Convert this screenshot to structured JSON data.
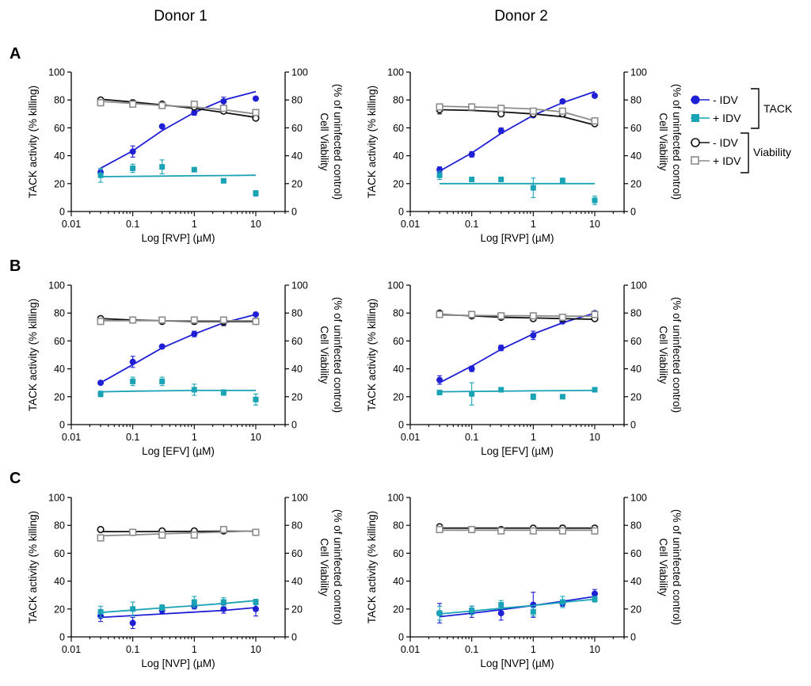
{
  "colors": {
    "tack_minus": "#1f1fd6",
    "tack_plus": "#1aa3b5",
    "viab_minus": "#111111",
    "viab_plus": "#8c8c8c",
    "axis": "#000000"
  },
  "donors": [
    "Donor 1",
    "Donor 2"
  ],
  "panels": [
    "A",
    "B",
    "C"
  ],
  "legend": {
    "items": [
      "- IDV",
      "+ IDV",
      "- IDV",
      "+ IDV"
    ],
    "groups": [
      "TACK",
      "Viability"
    ]
  },
  "chart_data": [
    {
      "type": "scatter",
      "panel": "A",
      "donor": "Donor 1",
      "xlabel": "Log [RVP] (µM)",
      "ylabel_left": "TACK activity (% killing)",
      "ylabel_right_1": "Cell Viability",
      "ylabel_right_2": "(% of uninfected control)",
      "xscale": "log",
      "xlim": [
        0.01,
        30
      ],
      "ylim": [
        0,
        100
      ],
      "x_ticks": [
        "0.01",
        "0.1",
        "1",
        "10"
      ],
      "y_ticks": [
        "0",
        "20",
        "40",
        "60",
        "80",
        "100"
      ],
      "x": [
        0.03,
        0.1,
        0.3,
        1,
        3,
        10
      ],
      "series": [
        {
          "name": "TACK - IDV",
          "values": [
            28,
            43,
            61,
            71,
            79,
            81
          ],
          "err": [
            2,
            4,
            1,
            2,
            3,
            1
          ],
          "fit": [
            31,
            43.5,
            58,
            71,
            80,
            86
          ]
        },
        {
          "name": "TACK + IDV",
          "values": [
            26,
            31,
            32,
            30,
            22,
            13
          ],
          "err": [
            5,
            3,
            5,
            1,
            1,
            2
          ],
          "fit": [
            25,
            25.2,
            25.4,
            25.6,
            25.8,
            26
          ]
        },
        {
          "name": "Viability - IDV",
          "values": [
            80,
            78,
            77,
            75,
            72,
            67
          ],
          "err": [
            1,
            2,
            1,
            1,
            1,
            1
          ],
          "fit": [
            80.5,
            78.5,
            76.5,
            74,
            71,
            67.5
          ]
        },
        {
          "name": "Viability + IDV",
          "values": [
            78,
            77,
            76,
            77,
            74,
            71
          ],
          "err": [
            1,
            1,
            1,
            2,
            2,
            1
          ],
          "fit": [
            79,
            77.5,
            76,
            75,
            73,
            70
          ]
        }
      ]
    },
    {
      "type": "scatter",
      "panel": "A",
      "donor": "Donor 2",
      "xlabel": "Log [RVP] (µM)",
      "ylabel_left": "TACK activity (% killing)",
      "ylabel_right_1": "Cell Viability",
      "ylabel_right_2": "(% of uninfected control)",
      "xscale": "log",
      "xlim": [
        0.01,
        30
      ],
      "ylim": [
        0,
        100
      ],
      "x_ticks": [
        "0.01",
        "0.1",
        "1",
        "10"
      ],
      "y_ticks": [
        "0",
        "20",
        "40",
        "60",
        "80",
        "100"
      ],
      "x": [
        0.03,
        0.1,
        0.3,
        1,
        3,
        10
      ],
      "series": [
        {
          "name": "TACK - IDV",
          "values": [
            30,
            41,
            58,
            69,
            79,
            83
          ],
          "err": [
            2,
            2,
            2,
            1,
            1,
            1
          ],
          "fit": [
            29,
            42,
            56,
            69,
            78,
            86
          ]
        },
        {
          "name": "TACK + IDV",
          "values": [
            26,
            23,
            23,
            17,
            22,
            8
          ],
          "err": [
            3,
            1,
            1,
            7,
            2,
            3
          ],
          "fit": [
            20,
            20,
            20,
            20,
            20,
            20
          ]
        },
        {
          "name": "Viability - IDV",
          "values": [
            73,
            75,
            70,
            70,
            70,
            63
          ],
          "err": [
            3,
            2,
            1,
            1,
            1,
            1
          ],
          "fit": [
            73,
            72.5,
            71.5,
            70,
            68,
            62
          ]
        },
        {
          "name": "Viability + IDV",
          "values": [
            75,
            75,
            74,
            72,
            72,
            65
          ],
          "err": [
            2,
            1,
            1,
            2,
            2,
            1
          ],
          "fit": [
            75.5,
            75,
            74.5,
            73.5,
            71.5,
            65
          ]
        }
      ]
    },
    {
      "type": "scatter",
      "panel": "B",
      "donor": "Donor 1",
      "xlabel": "Log [EFV] (µM)",
      "ylabel_left": "TACK activity (% killing)",
      "ylabel_right_1": "Cell Viability",
      "ylabel_right_2": "(% of uninfected control)",
      "xscale": "log",
      "xlim": [
        0.01,
        30
      ],
      "ylim": [
        0,
        100
      ],
      "x_ticks": [
        "0.01",
        "0.1",
        "1",
        "10"
      ],
      "y_ticks": [
        "0",
        "20",
        "40",
        "60",
        "80",
        "100"
      ],
      "x": [
        0.03,
        0.1,
        0.3,
        1,
        3,
        10
      ],
      "series": [
        {
          "name": "TACK - IDV",
          "values": [
            30,
            45,
            56,
            65,
            73,
            79
          ],
          "err": [
            1,
            4,
            1,
            2,
            2,
            1
          ],
          "fit": [
            30,
            43,
            55,
            65,
            73,
            79
          ]
        },
        {
          "name": "TACK + IDV",
          "values": [
            22,
            31,
            31,
            25,
            23,
            18
          ],
          "err": [
            2,
            3,
            3,
            4,
            2,
            4
          ],
          "fit": [
            23.5,
            24,
            24.2,
            24.5,
            24.5,
            24.5
          ]
        },
        {
          "name": "Viability - IDV",
          "values": [
            76,
            75,
            74,
            74,
            74,
            74
          ],
          "err": [
            1,
            1,
            1,
            2,
            3,
            1
          ],
          "fit": [
            76,
            75,
            74.5,
            74,
            74,
            74
          ]
        },
        {
          "name": "Viability + IDV",
          "values": [
            74,
            75,
            75,
            75,
            75,
            74
          ],
          "err": [
            1,
            1,
            1,
            1,
            1,
            1
          ],
          "fit": [
            74.5,
            74.5,
            74.5,
            74.5,
            74.5,
            74.5
          ]
        }
      ]
    },
    {
      "type": "scatter",
      "panel": "B",
      "donor": "Donor 2",
      "xlabel": "Log [EFV] (µM)",
      "ylabel_left": "TACK activity (% killing)",
      "ylabel_right_1": "Cell Viability",
      "ylabel_right_2": "(% of uninfected control)",
      "xscale": "log",
      "xlim": [
        0.01,
        30
      ],
      "ylim": [
        0,
        100
      ],
      "x_ticks": [
        "0.01",
        "0.1",
        "1",
        "10"
      ],
      "y_ticks": [
        "0",
        "20",
        "40",
        "60",
        "80",
        "100"
      ],
      "x": [
        0.03,
        0.1,
        0.3,
        1,
        3,
        10
      ],
      "series": [
        {
          "name": "TACK - IDV",
          "values": [
            32,
            40,
            55,
            64,
            74,
            80
          ],
          "err": [
            3,
            2,
            2,
            3,
            1,
            1
          ],
          "fit": [
            30,
            42,
            54,
            65,
            73,
            80
          ]
        },
        {
          "name": "TACK + IDV",
          "values": [
            23,
            22,
            25,
            20,
            20,
            25
          ],
          "err": [
            1,
            8,
            1,
            2,
            1,
            1
          ],
          "fit": [
            23.5,
            23.8,
            24,
            24.2,
            24.4,
            24.5
          ]
        },
        {
          "name": "Viability - IDV",
          "values": [
            80,
            78,
            77,
            76,
            76,
            76
          ],
          "err": [
            1,
            1,
            1,
            1,
            1,
            1
          ],
          "fit": [
            79,
            78,
            77,
            76.5,
            76,
            75.5
          ]
        },
        {
          "name": "Viability + IDV",
          "values": [
            79,
            79,
            78,
            78,
            77,
            79
          ],
          "err": [
            2,
            1,
            1,
            1,
            1,
            1
          ],
          "fit": [
            78.5,
            78.3,
            78.1,
            78,
            77.8,
            77.7
          ]
        }
      ]
    },
    {
      "type": "scatter",
      "panel": "C",
      "donor": "Donor 1",
      "xlabel": "Log [NVP] (µM)",
      "ylabel_left": "TACK activity (% killing)",
      "ylabel_right_1": "Cell Viability",
      "ylabel_right_2": "(% of uninfected control)",
      "xscale": "log",
      "xlim": [
        0.01,
        30
      ],
      "ylim": [
        0,
        100
      ],
      "x_ticks": [
        "0.01",
        "0.1",
        "1",
        "10"
      ],
      "y_ticks": [
        "0",
        "20",
        "40",
        "60",
        "80",
        "100"
      ],
      "x": [
        0.03,
        0.1,
        0.3,
        1,
        3,
        10
      ],
      "series": [
        {
          "name": "TACK - IDV",
          "values": [
            15,
            10,
            19,
            22,
            20,
            20
          ],
          "err": [
            4,
            4,
            2,
            2,
            3,
            5
          ],
          "fit": [
            14,
            15.3,
            16.5,
            17.8,
            19,
            21
          ]
        },
        {
          "name": "TACK + IDV",
          "values": [
            18,
            20,
            21,
            25,
            25,
            25
          ],
          "err": [
            4,
            5,
            2,
            4,
            3,
            2
          ],
          "fit": [
            17.5,
            19.2,
            20.8,
            22.4,
            24,
            26
          ]
        },
        {
          "name": "Viability - IDV",
          "values": [
            77,
            75,
            76,
            76,
            76,
            75
          ],
          "err": [
            1,
            1,
            1,
            1,
            1,
            1
          ],
          "fit": [
            75.5,
            75.5,
            75.6,
            75.7,
            75.8,
            75.8
          ]
        },
        {
          "name": "Viability + IDV",
          "values": [
            71,
            75,
            73,
            73,
            77,
            75
          ],
          "err": [
            1,
            1,
            1,
            2,
            1,
            1
          ],
          "fit": [
            72.5,
            73.2,
            73.9,
            74.6,
            75.2,
            76
          ]
        }
      ]
    },
    {
      "type": "scatter",
      "panel": "C",
      "donor": "Donor 2",
      "xlabel": "Log [NVP] (µM)",
      "ylabel_left": "TACK activity (% killing)",
      "ylabel_right_1": "Cell Viability",
      "ylabel_right_2": "(% of uninfected control)",
      "xscale": "log",
      "xlim": [
        0.01,
        30
      ],
      "ylim": [
        0,
        100
      ],
      "x_ticks": [
        "0.01",
        "0.1",
        "1",
        "10"
      ],
      "y_ticks": [
        "0",
        "20",
        "40",
        "60",
        "80",
        "100"
      ],
      "x": [
        0.03,
        0.1,
        0.3,
        1,
        3,
        10
      ],
      "series": [
        {
          "name": "TACK - IDV",
          "values": [
            17,
            18,
            17,
            23,
            24,
            31
          ],
          "err": [
            7,
            4,
            5,
            9,
            2,
            3
          ],
          "fit": [
            14.5,
            17,
            19.5,
            22.5,
            25.5,
            29
          ]
        },
        {
          "name": "TACK + IDV",
          "values": [
            17,
            19,
            23,
            18,
            25,
            27
          ],
          "err": [
            5,
            3,
            3,
            3,
            4,
            2
          ],
          "fit": [
            16.5,
            18.5,
            20.5,
            22.5,
            24.8,
            27
          ]
        },
        {
          "name": "Viability - IDV",
          "values": [
            79,
            77,
            77,
            78,
            78,
            78
          ],
          "err": [
            1,
            1,
            1,
            1,
            2,
            1
          ],
          "fit": [
            78,
            78,
            78,
            78,
            78,
            78
          ]
        },
        {
          "name": "Viability + IDV",
          "values": [
            77,
            77,
            76,
            76,
            76,
            76
          ],
          "err": [
            1,
            1,
            1,
            1,
            1,
            1
          ],
          "fit": [
            76.5,
            76.5,
            76.5,
            76.5,
            76.5,
            76.5
          ]
        }
      ]
    }
  ]
}
